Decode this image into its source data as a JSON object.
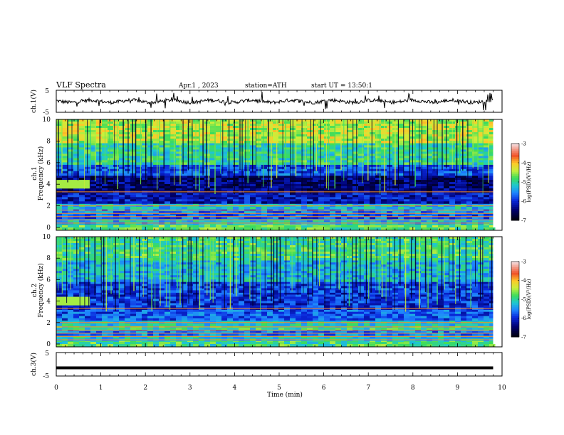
{
  "header": {
    "title": "VLF Spectra",
    "date": "Apr.1 , 2023",
    "station": "station=ATH",
    "start": "start UT = 13:50:1"
  },
  "colorbar": {
    "label": "log(PSD)(V²/Hz)",
    "ticks": [
      "-3",
      "-4",
      "-5",
      "-6",
      "-7"
    ],
    "colors": [
      "#f2d4d4",
      "#e03020",
      "#ff8c00",
      "#ffff40",
      "#40e040",
      "#20c8c8",
      "#2080ff",
      "#0000c0",
      "#000040",
      "#000000"
    ]
  },
  "chart_data": [
    {
      "type": "line",
      "name": "ch1-waveform",
      "ylabel": "ch.1(V)",
      "ylim": [
        -5,
        5
      ],
      "yticks": [
        "5",
        "-5"
      ],
      "xlim": [
        0,
        10
      ],
      "baseline_value": 0,
      "note_values": [
        0,
        -1,
        0.5,
        -0.5,
        1,
        -2,
        0
      ]
    },
    {
      "type": "heatmap",
      "name": "ch1-spectrogram",
      "channel_label": "ch.1",
      "ylabel": "Frequency (kHz)",
      "ylim": [
        0,
        10
      ],
      "yticks": [
        "10",
        "8",
        "6",
        "4",
        "2",
        "0"
      ],
      "xlim": [
        0,
        10
      ],
      "bands": [
        {
          "from": 0.0,
          "to": 0.4,
          "level": -4.8
        },
        {
          "from": 0.4,
          "to": 0.9,
          "level": -5.3
        },
        {
          "from": 0.9,
          "to": 1.4,
          "level": -5.8
        },
        {
          "from": 1.4,
          "to": 1.9,
          "level": -5.6
        },
        {
          "from": 1.9,
          "to": 2.3,
          "level": -5.3
        },
        {
          "from": 2.3,
          "to": 3.4,
          "level": -6.2
        },
        {
          "from": 3.4,
          "to": 5.0,
          "level": -6.5
        },
        {
          "from": 5.0,
          "to": 6.0,
          "level": -5.8
        },
        {
          "from": 6.0,
          "to": 8.0,
          "level": -5.0
        },
        {
          "from": 8.0,
          "to": 10.0,
          "level": -4.4
        }
      ]
    },
    {
      "type": "heatmap",
      "name": "ch2-spectrogram",
      "channel_label": "ch.2",
      "ylabel": "Frequency (kHz)",
      "ylim": [
        0,
        10
      ],
      "yticks": [
        "10",
        "8",
        "6",
        "4",
        "2",
        "0"
      ],
      "xlim": [
        0,
        10
      ],
      "bands": [
        {
          "from": 0.0,
          "to": 0.4,
          "level": -4.9
        },
        {
          "from": 0.4,
          "to": 0.9,
          "level": -5.2
        },
        {
          "from": 0.9,
          "to": 1.4,
          "level": -5.6
        },
        {
          "from": 1.4,
          "to": 1.9,
          "level": -5.0
        },
        {
          "from": 1.9,
          "to": 2.3,
          "level": -5.2
        },
        {
          "from": 2.3,
          "to": 3.4,
          "level": -5.8
        },
        {
          "from": 3.4,
          "to": 5.0,
          "level": -6.0
        },
        {
          "from": 5.0,
          "to": 6.0,
          "level": -5.9
        },
        {
          "from": 6.0,
          "to": 8.0,
          "level": -5.3
        },
        {
          "from": 8.0,
          "to": 10.0,
          "level": -4.9
        }
      ]
    },
    {
      "type": "line",
      "name": "ch3-waveform",
      "ylabel": "ch.3(V)",
      "ylim": [
        -5,
        5
      ],
      "yticks": [
        "5",
        "-5"
      ],
      "xlim": [
        0,
        10
      ],
      "baseline_value": -1.5
    }
  ],
  "xaxis": {
    "label": "Time (min)",
    "ticks": [
      "0",
      "1",
      "2",
      "3",
      "4",
      "5",
      "6",
      "7",
      "8",
      "9",
      "10"
    ],
    "data_end": 9.8
  }
}
